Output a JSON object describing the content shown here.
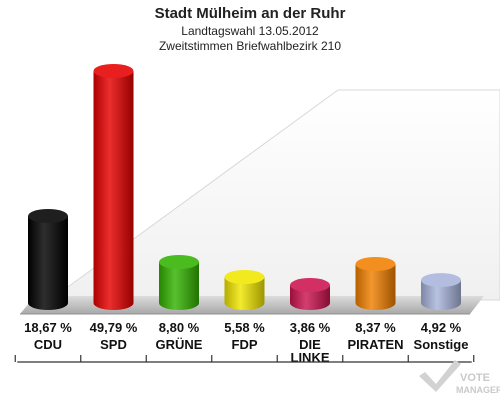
{
  "chart_data": {
    "type": "bar",
    "title": "Stadt Mülheim an der Ruhr",
    "subtitle_lines": [
      "Landtagswahl 13.05.2012",
      "Zweitstimmen Briefwahlbezirk 210"
    ],
    "categories": [
      "CDU",
      "SPD",
      "GRÜNE",
      "FDP",
      "DIE LINKE",
      "PIRATEN",
      "Sonstige"
    ],
    "category_lines": [
      [
        "CDU"
      ],
      [
        "SPD"
      ],
      [
        "GRÜNE"
      ],
      [
        "FDP"
      ],
      [
        "DIE",
        "LINKE"
      ],
      [
        "PIRATEN"
      ],
      [
        "Sonstige"
      ]
    ],
    "values": [
      18.67,
      49.79,
      8.8,
      5.58,
      3.86,
      8.37,
      4.92
    ],
    "value_labels": [
      "18,67 %",
      "49,79 %",
      "8,80 %",
      "5,58 %",
      "3,86 %",
      "8,37 %",
      "4,92 %"
    ],
    "colors": [
      "#000000",
      "#e60000",
      "#33b300",
      "#f0e600",
      "#cc1450",
      "#f08000",
      "#a8b4dc"
    ],
    "xlabel": "",
    "ylabel": "",
    "ylim": [
      0,
      50
    ],
    "grid": false,
    "legend": "none"
  },
  "logo": {
    "line1": "VOTE",
    "line2": "MANAGER"
  }
}
